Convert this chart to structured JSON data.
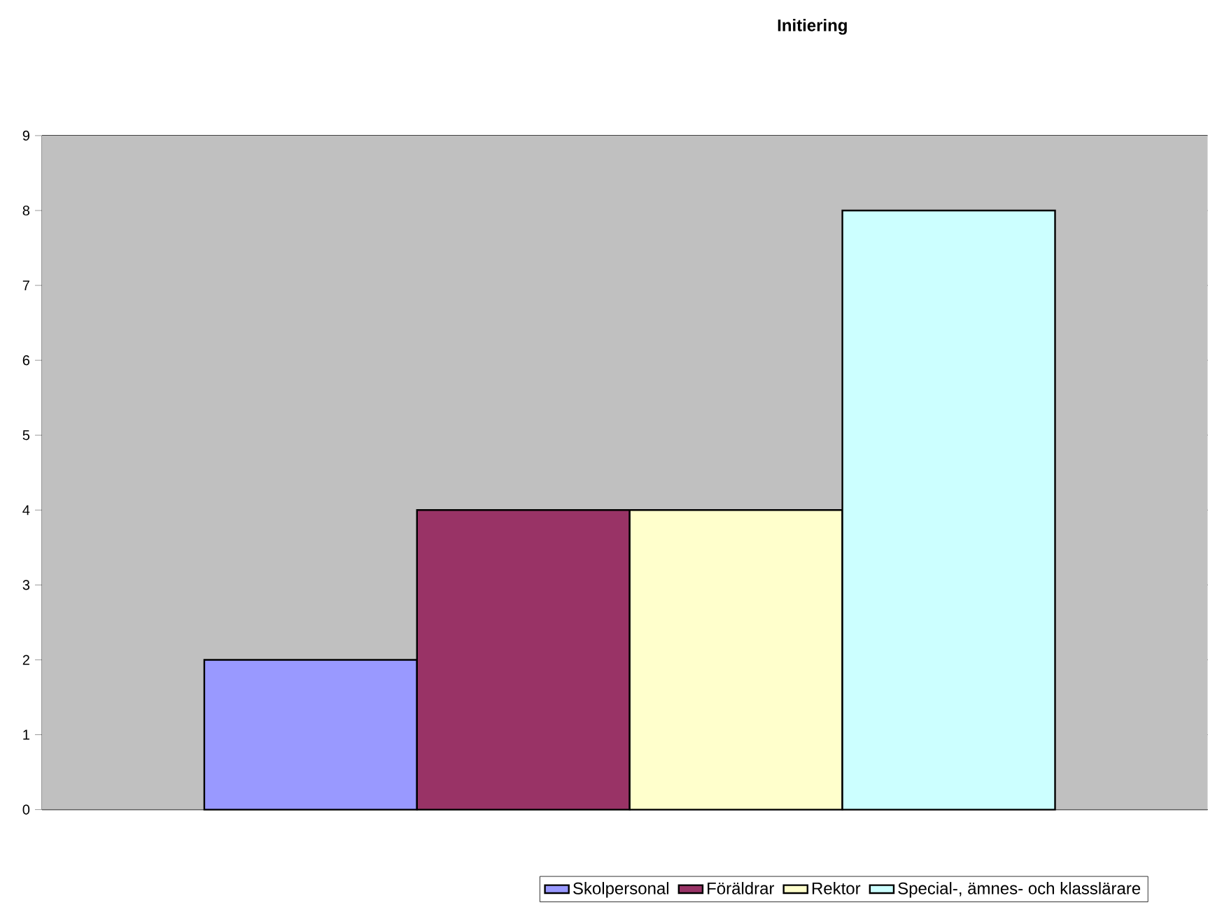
{
  "chart_data": {
    "type": "bar",
    "title": "Initiering",
    "categories": [
      null
    ],
    "series": [
      {
        "name": "Skolpersonal",
        "color": "#9999ff",
        "values": [
          2
        ]
      },
      {
        "name": "Föräldrar",
        "color": "#993366",
        "values": [
          4
        ]
      },
      {
        "name": "Rektor",
        "color": "#ffffcc",
        "values": [
          4
        ]
      },
      {
        "name": "Special-, ämnes- och klasslärare",
        "color": "#ccffff",
        "values": [
          8
        ]
      }
    ],
    "ylim": [
      0,
      9
    ],
    "yticks": [
      0,
      1,
      2,
      3,
      4,
      5,
      6,
      7,
      8,
      9
    ],
    "grid": "y",
    "legend": "bottom"
  }
}
